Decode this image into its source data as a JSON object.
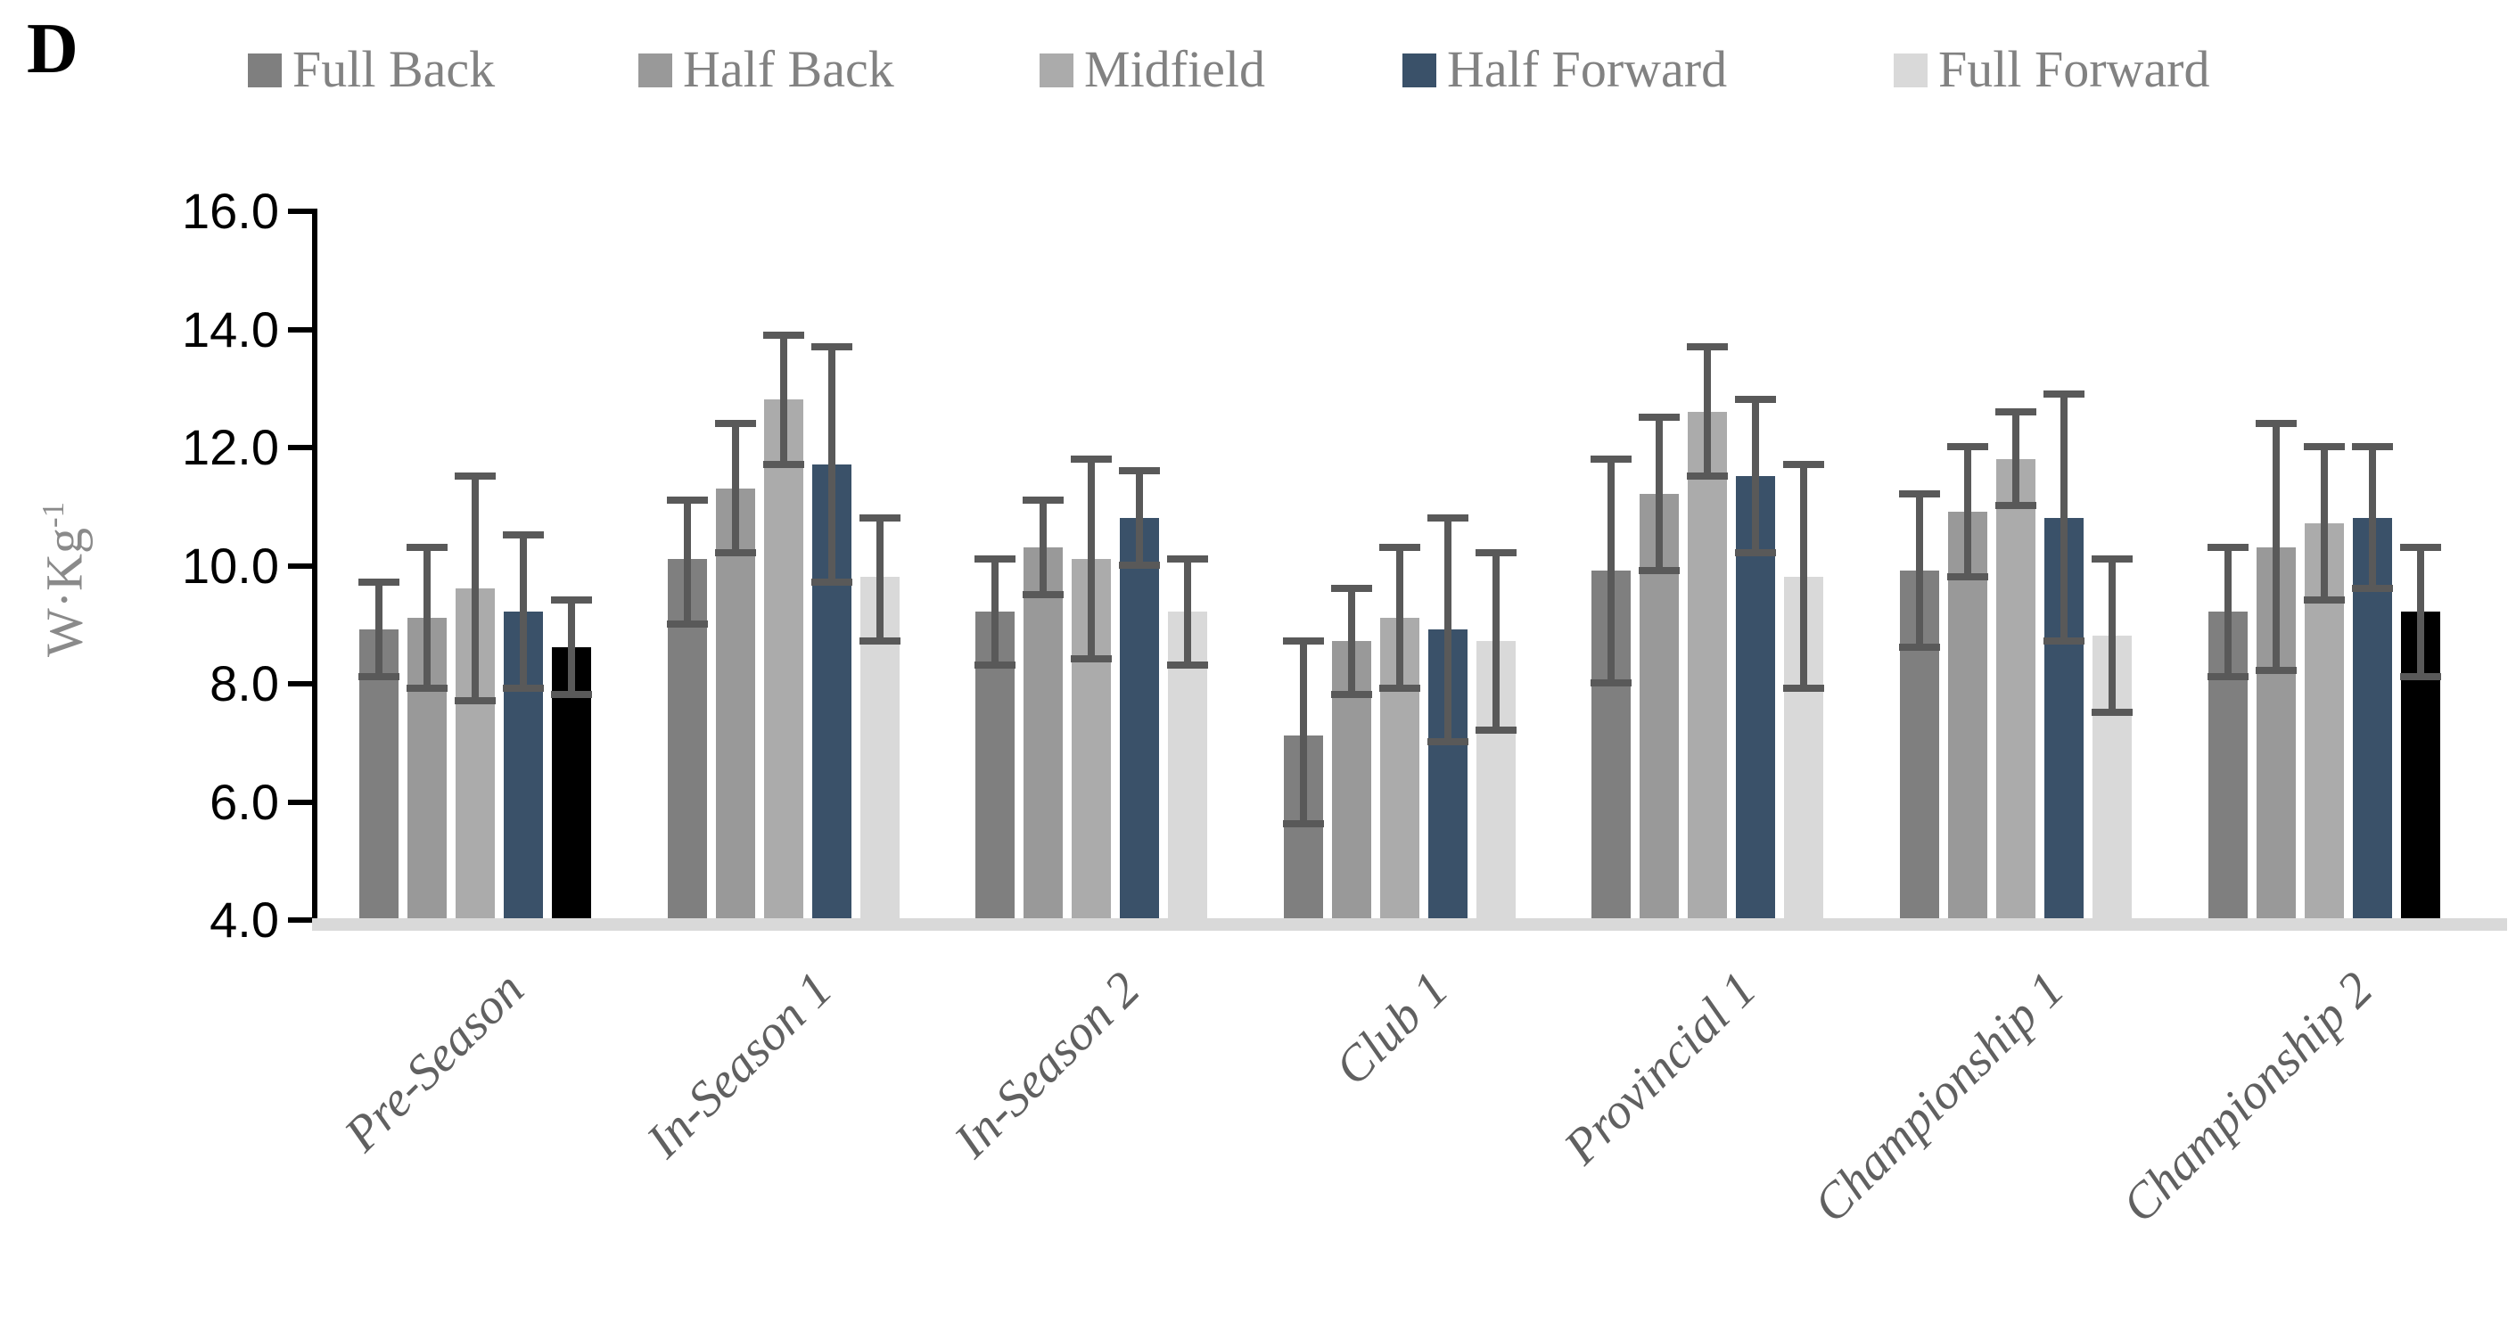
{
  "panel_label": "D",
  "legend": {
    "items": [
      "Full Back",
      "Half Back",
      "Midfield",
      "Half Forward",
      "Full Forward"
    ]
  },
  "y_axis": {
    "title_main": "W·Kg",
    "title_superscript": "-1",
    "tick_labels": [
      "16.0",
      "14.0",
      "12.0",
      "10.0",
      "8.0",
      "6.0",
      "4.0"
    ],
    "min": 4.0,
    "max": 16.0,
    "step": 2.0
  },
  "chart_data": {
    "type": "bar",
    "title": "",
    "xlabel": "",
    "ylabel": "W·Kg^-1",
    "ylim": [
      4.0,
      16.0
    ],
    "grid": false,
    "legend_position": "top",
    "error_bars": true,
    "categories": [
      "Pre-Season",
      "In-Season 1",
      "In-Season 2",
      "Club 1",
      "Provincial 1",
      "Championship 1",
      "Championship 2"
    ],
    "series": [
      {
        "name": "Full Back",
        "color": "#7f7f7f",
        "values": [
          8.9,
          10.1,
          9.2,
          7.1,
          9.9,
          9.9,
          9.2
        ],
        "err_low": [
          8.1,
          9.0,
          8.3,
          5.6,
          8.0,
          8.6,
          8.1
        ],
        "err_high": [
          9.7,
          11.1,
          10.1,
          8.7,
          11.8,
          11.2,
          10.3
        ]
      },
      {
        "name": "Half Back",
        "color": "#999999",
        "values": [
          9.1,
          11.3,
          10.3,
          8.7,
          11.2,
          10.9,
          10.3
        ],
        "err_low": [
          7.9,
          10.2,
          9.5,
          7.8,
          9.9,
          9.8,
          8.2
        ],
        "err_high": [
          10.3,
          12.4,
          11.1,
          9.6,
          12.5,
          12.0,
          12.4
        ]
      },
      {
        "name": "Midfield",
        "color": "#ababab",
        "values": [
          9.6,
          12.8,
          10.1,
          9.1,
          12.6,
          11.8,
          10.7
        ],
        "err_low": [
          7.7,
          11.7,
          8.4,
          7.9,
          11.5,
          11.0,
          9.4
        ],
        "err_high": [
          11.5,
          13.9,
          11.8,
          10.3,
          13.7,
          12.6,
          12.0
        ]
      },
      {
        "name": "Half Forward",
        "color": "#3a5169",
        "values": [
          9.2,
          11.7,
          10.8,
          8.9,
          11.5,
          10.8,
          10.8
        ],
        "err_low": [
          7.9,
          9.7,
          10.0,
          7.0,
          10.2,
          8.7,
          9.6
        ],
        "err_high": [
          10.5,
          13.7,
          11.6,
          10.8,
          12.8,
          12.9,
          12.0
        ]
      },
      {
        "name": "Full Forward",
        "color": "#d9d9d9",
        "values": [
          8.6,
          9.8,
          9.2,
          8.7,
          9.8,
          8.8,
          9.2
        ],
        "err_low": [
          7.8,
          8.7,
          8.3,
          7.2,
          7.9,
          7.5,
          8.1
        ],
        "err_high": [
          9.4,
          10.8,
          10.1,
          10.2,
          11.7,
          10.1,
          10.3
        ]
      }
    ],
    "bar_color_overrides": [
      {
        "category": "Pre-Season",
        "series": "Full Forward",
        "color": "#000000"
      },
      {
        "category": "Championship 2",
        "series": "Full Forward",
        "color": "#000000"
      }
    ]
  },
  "colors": {
    "error_bar": "#595959",
    "axis_line": "#000000",
    "x_axis_strip": "#d9d9d9",
    "tick_label": "#000000",
    "legend_text": "#828282",
    "x_label_text": "#606060",
    "y_title_text": "#8a8a8a"
  }
}
